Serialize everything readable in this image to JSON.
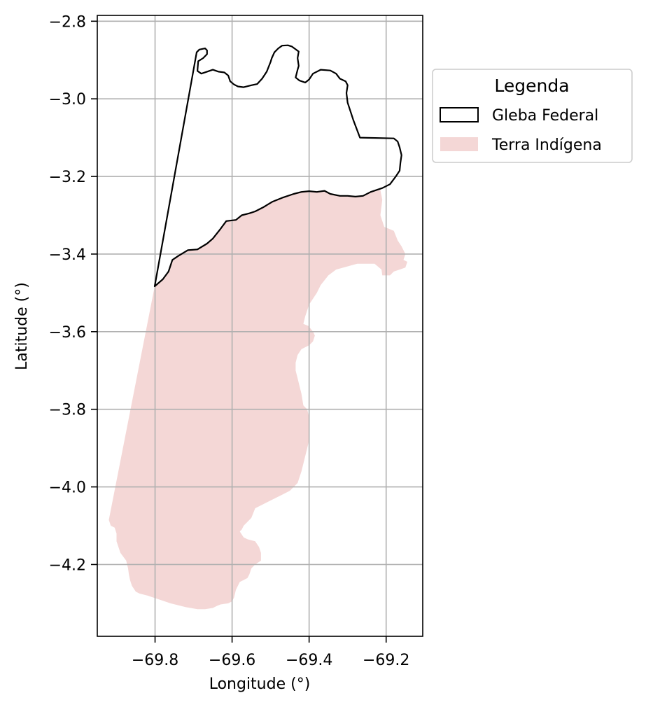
{
  "chart_data": {
    "type": "map",
    "xlabel": "Longitude (°)",
    "ylabel": "Latitude (°)",
    "xlim": [
      -69.95,
      -69.105
    ],
    "ylim": [
      -4.385,
      -2.785
    ],
    "grid": true,
    "legend_placement": "outside-right-top",
    "x_ticks": [
      {
        "value": -69.8,
        "label": "−69.8"
      },
      {
        "value": -69.6,
        "label": "−69.6"
      },
      {
        "value": -69.4,
        "label": "−69.4"
      },
      {
        "value": -69.2,
        "label": "−69.2"
      }
    ],
    "y_ticks": [
      {
        "value": -2.8,
        "label": "−2.8"
      },
      {
        "value": -3.0,
        "label": "−3.0"
      },
      {
        "value": -3.2,
        "label": "−3.2"
      },
      {
        "value": -3.4,
        "label": "−3.4"
      },
      {
        "value": -3.6,
        "label": "−3.6"
      },
      {
        "value": -3.8,
        "label": "−3.8"
      },
      {
        "value": -4.0,
        "label": "−4.0"
      },
      {
        "value": -4.2,
        "label": "−4.2"
      }
    ],
    "legend": {
      "title": "Legenda",
      "entries": [
        {
          "label": "Gleba Federal",
          "style": "outline",
          "edge_color": "#000000",
          "fill_color": "#ffffff"
        },
        {
          "label": "Terra Indígena",
          "style": "fill",
          "fill_color": "#f4d7d6"
        }
      ]
    },
    "layers": [
      {
        "name": "Gleba Federal",
        "style": "outline",
        "edge_color": "#000000",
        "polygon": [
          [
            -69.801,
            -3.483
          ],
          [
            -69.78,
            -3.465
          ],
          [
            -69.765,
            -3.445
          ],
          [
            -69.755,
            -3.415
          ],
          [
            -69.74,
            -3.405
          ],
          [
            -69.715,
            -3.39
          ],
          [
            -69.69,
            -3.388
          ],
          [
            -69.665,
            -3.373
          ],
          [
            -69.65,
            -3.36
          ],
          [
            -69.63,
            -3.335
          ],
          [
            -69.615,
            -3.315
          ],
          [
            -69.59,
            -3.312
          ],
          [
            -69.575,
            -3.3
          ],
          [
            -69.555,
            -3.295
          ],
          [
            -69.54,
            -3.29
          ],
          [
            -69.52,
            -3.28
          ],
          [
            -69.495,
            -3.265
          ],
          [
            -69.47,
            -3.255
          ],
          [
            -69.44,
            -3.245
          ],
          [
            -69.42,
            -3.24
          ],
          [
            -69.4,
            -3.238
          ],
          [
            -69.38,
            -3.24
          ],
          [
            -69.36,
            -3.237
          ],
          [
            -69.345,
            -3.245
          ],
          [
            -69.32,
            -3.25
          ],
          [
            -69.3,
            -3.25
          ],
          [
            -69.28,
            -3.252
          ],
          [
            -69.26,
            -3.25
          ],
          [
            -69.24,
            -3.24
          ],
          [
            -69.21,
            -3.23
          ],
          [
            -69.19,
            -3.22
          ],
          [
            -69.175,
            -3.2
          ],
          [
            -69.165,
            -3.185
          ],
          [
            -69.163,
            -3.165
          ],
          [
            -69.16,
            -3.145
          ],
          [
            -69.165,
            -3.125
          ],
          [
            -69.17,
            -3.11
          ],
          [
            -69.18,
            -3.102
          ],
          [
            -69.268,
            -3.1
          ],
          [
            -69.285,
            -3.055
          ],
          [
            -69.3,
            -3.01
          ],
          [
            -69.303,
            -2.985
          ],
          [
            -69.3,
            -2.965
          ],
          [
            -69.305,
            -2.955
          ],
          [
            -69.32,
            -2.948
          ],
          [
            -69.33,
            -2.935
          ],
          [
            -69.345,
            -2.927
          ],
          [
            -69.37,
            -2.925
          ],
          [
            -69.39,
            -2.935
          ],
          [
            -69.4,
            -2.95
          ],
          [
            -69.41,
            -2.958
          ],
          [
            -69.425,
            -2.953
          ],
          [
            -69.435,
            -2.945
          ],
          [
            -69.43,
            -2.925
          ],
          [
            -69.427,
            -2.915
          ],
          [
            -69.43,
            -2.895
          ],
          [
            -69.427,
            -2.878
          ],
          [
            -69.445,
            -2.865
          ],
          [
            -69.455,
            -2.862
          ],
          [
            -69.47,
            -2.863
          ],
          [
            -69.48,
            -2.87
          ],
          [
            -69.49,
            -2.88
          ],
          [
            -69.497,
            -2.895
          ],
          [
            -69.5,
            -2.905
          ],
          [
            -69.51,
            -2.93
          ],
          [
            -69.522,
            -2.948
          ],
          [
            -69.535,
            -2.962
          ],
          [
            -69.55,
            -2.965
          ],
          [
            -69.57,
            -2.97
          ],
          [
            -69.585,
            -2.968
          ],
          [
            -69.595,
            -2.963
          ],
          [
            -69.605,
            -2.955
          ],
          [
            -69.61,
            -2.94
          ],
          [
            -69.62,
            -2.932
          ],
          [
            -69.635,
            -2.93
          ],
          [
            -69.65,
            -2.925
          ],
          [
            -69.665,
            -2.93
          ],
          [
            -69.68,
            -2.935
          ],
          [
            -69.69,
            -2.928
          ],
          [
            -69.688,
            -2.903
          ],
          [
            -69.675,
            -2.895
          ],
          [
            -69.665,
            -2.885
          ],
          [
            -69.665,
            -2.875
          ],
          [
            -69.67,
            -2.87
          ],
          [
            -69.685,
            -2.873
          ],
          [
            -69.692,
            -2.88
          ],
          [
            -69.801,
            -3.483
          ]
        ]
      },
      {
        "name": "Terra Indígena",
        "style": "fill",
        "fill_color": "#f4d7d6",
        "polygon": [
          [
            -69.801,
            -3.483
          ],
          [
            -69.78,
            -3.465
          ],
          [
            -69.765,
            -3.445
          ],
          [
            -69.755,
            -3.415
          ],
          [
            -69.74,
            -3.405
          ],
          [
            -69.715,
            -3.39
          ],
          [
            -69.69,
            -3.388
          ],
          [
            -69.665,
            -3.373
          ],
          [
            -69.65,
            -3.36
          ],
          [
            -69.63,
            -3.335
          ],
          [
            -69.615,
            -3.315
          ],
          [
            -69.59,
            -3.312
          ],
          [
            -69.575,
            -3.3
          ],
          [
            -69.555,
            -3.295
          ],
          [
            -69.54,
            -3.29
          ],
          [
            -69.52,
            -3.28
          ],
          [
            -69.495,
            -3.265
          ],
          [
            -69.47,
            -3.255
          ],
          [
            -69.44,
            -3.245
          ],
          [
            -69.42,
            -3.24
          ],
          [
            -69.4,
            -3.238
          ],
          [
            -69.38,
            -3.24
          ],
          [
            -69.36,
            -3.237
          ],
          [
            -69.345,
            -3.245
          ],
          [
            -69.32,
            -3.25
          ],
          [
            -69.3,
            -3.25
          ],
          [
            -69.28,
            -3.252
          ],
          [
            -69.26,
            -3.25
          ],
          [
            -69.24,
            -3.24
          ],
          [
            -69.215,
            -3.235
          ],
          [
            -69.21,
            -3.26
          ],
          [
            -69.215,
            -3.3
          ],
          [
            -69.205,
            -3.33
          ],
          [
            -69.18,
            -3.34
          ],
          [
            -69.17,
            -3.365
          ],
          [
            -69.16,
            -3.38
          ],
          [
            -69.15,
            -3.4
          ],
          [
            -69.155,
            -3.415
          ],
          [
            -69.145,
            -3.42
          ],
          [
            -69.15,
            -3.435
          ],
          [
            -69.165,
            -3.44
          ],
          [
            -69.18,
            -3.445
          ],
          [
            -69.19,
            -3.455
          ],
          [
            -69.21,
            -3.455
          ],
          [
            -69.212,
            -3.44
          ],
          [
            -69.23,
            -3.425
          ],
          [
            -69.275,
            -3.425
          ],
          [
            -69.33,
            -3.44
          ],
          [
            -69.35,
            -3.455
          ],
          [
            -69.37,
            -3.48
          ],
          [
            -69.38,
            -3.5
          ],
          [
            -69.4,
            -3.53
          ],
          [
            -69.41,
            -3.56
          ],
          [
            -69.415,
            -3.58
          ],
          [
            -69.402,
            -3.585
          ],
          [
            -69.39,
            -3.6
          ],
          [
            -69.385,
            -3.61
          ],
          [
            -69.39,
            -3.625
          ],
          [
            -69.4,
            -3.635
          ],
          [
            -69.42,
            -3.645
          ],
          [
            -69.43,
            -3.66
          ],
          [
            -69.435,
            -3.68
          ],
          [
            -69.435,
            -3.7
          ],
          [
            -69.43,
            -3.72
          ],
          [
            -69.425,
            -3.74
          ],
          [
            -69.42,
            -3.76
          ],
          [
            -69.415,
            -3.79
          ],
          [
            -69.405,
            -3.8
          ],
          [
            -69.4,
            -3.82
          ],
          [
            -69.4,
            -3.88
          ],
          [
            -69.41,
            -3.92
          ],
          [
            -69.42,
            -3.96
          ],
          [
            -69.43,
            -3.99
          ],
          [
            -69.45,
            -4.01
          ],
          [
            -69.47,
            -4.02
          ],
          [
            -69.49,
            -4.03
          ],
          [
            -69.51,
            -4.04
          ],
          [
            -69.54,
            -4.055
          ],
          [
            -69.55,
            -4.08
          ],
          [
            -69.56,
            -4.09
          ],
          [
            -69.57,
            -4.1
          ],
          [
            -69.575,
            -4.11
          ],
          [
            -69.58,
            -4.115
          ],
          [
            -69.57,
            -4.13
          ],
          [
            -69.56,
            -4.135
          ],
          [
            -69.54,
            -4.14
          ],
          [
            -69.53,
            -4.155
          ],
          [
            -69.525,
            -4.17
          ],
          [
            -69.525,
            -4.19
          ],
          [
            -69.54,
            -4.2
          ],
          [
            -69.55,
            -4.21
          ],
          [
            -69.555,
            -4.225
          ],
          [
            -69.56,
            -4.235
          ],
          [
            -69.57,
            -4.24
          ],
          [
            -69.58,
            -4.245
          ],
          [
            -69.59,
            -4.265
          ],
          [
            -69.595,
            -4.285
          ],
          [
            -69.6,
            -4.295
          ],
          [
            -69.61,
            -4.3
          ],
          [
            -69.63,
            -4.303
          ],
          [
            -69.64,
            -4.307
          ],
          [
            -69.65,
            -4.312
          ],
          [
            -69.67,
            -4.315
          ],
          [
            -69.69,
            -4.315
          ],
          [
            -69.72,
            -4.31
          ],
          [
            -69.76,
            -4.3
          ],
          [
            -69.79,
            -4.29
          ],
          [
            -69.82,
            -4.28
          ],
          [
            -69.84,
            -4.275
          ],
          [
            -69.85,
            -4.27
          ],
          [
            -69.86,
            -4.255
          ],
          [
            -69.865,
            -4.24
          ],
          [
            -69.868,
            -4.225
          ],
          [
            -69.87,
            -4.21
          ],
          [
            -69.875,
            -4.19
          ],
          [
            -69.89,
            -4.17
          ],
          [
            -69.9,
            -4.14
          ],
          [
            -69.9,
            -4.12
          ],
          [
            -69.905,
            -4.105
          ],
          [
            -69.915,
            -4.1
          ],
          [
            -69.92,
            -4.085
          ],
          [
            -69.801,
            -3.483
          ]
        ]
      }
    ]
  }
}
